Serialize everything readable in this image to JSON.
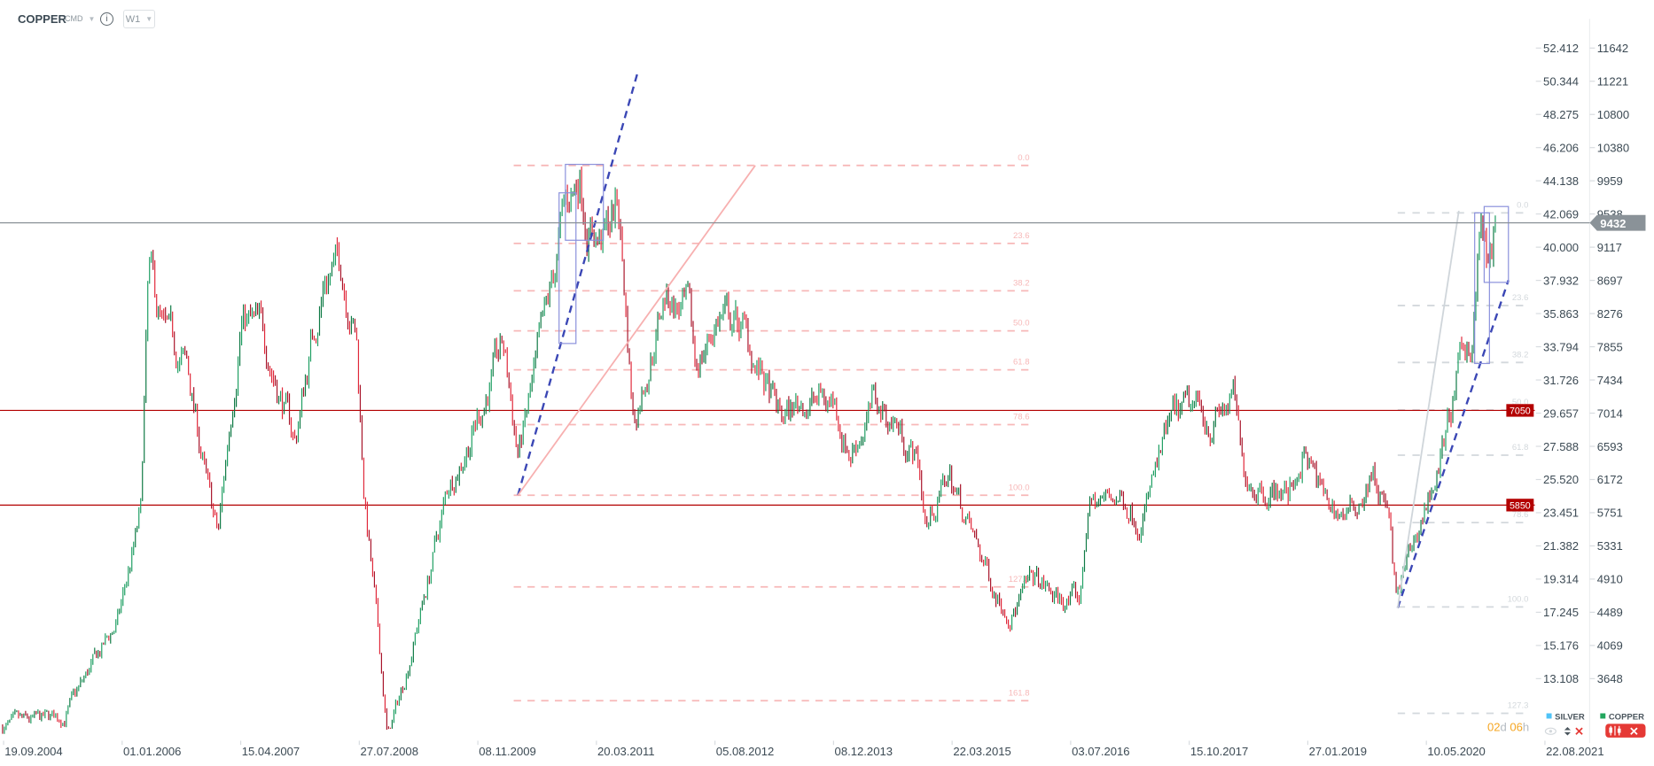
{
  "header": {
    "symbol": "COPPER",
    "market": "CMD",
    "market_caret": "▼",
    "info_icon": "i",
    "timeframe": "W1",
    "timeframe_caret": "▼"
  },
  "price_axis_silver": [
    "52.412",
    "50.344",
    "48.275",
    "46.206",
    "44.138",
    "42.069",
    "40.000",
    "37.932",
    "35.863",
    "33.794",
    "31.726",
    "29.657",
    "27.588",
    "25.520",
    "23.451",
    "21.382",
    "19.314",
    "17.245",
    "15.176",
    "13.108"
  ],
  "price_axis_copper": [
    "11642",
    "11221",
    "10800",
    "10380",
    "9959",
    "9538",
    "9117",
    "8697",
    "8276",
    "7855",
    "7434",
    "7014",
    "6593",
    "6172",
    "5751",
    "5331",
    "4910",
    "4489",
    "4069",
    "3648"
  ],
  "date_axis": [
    "19.09.2004",
    "01.01.2006",
    "15.04.2007",
    "27.07.2008",
    "08.11.2009",
    "20.03.2011",
    "05.08.2012",
    "08.12.2013",
    "22.03.2015",
    "03.07.2016",
    "15.10.2017",
    "27.01.2019",
    "10.05.2020",
    "22.08.2021"
  ],
  "current_price": {
    "label": "9432",
    "value": 9432,
    "color": "#8a9298"
  },
  "horizontal_levels": [
    {
      "label": "7050",
      "value": 7050,
      "color": "#b30000"
    },
    {
      "label": "5850",
      "value": 5850,
      "color": "#b30000"
    }
  ],
  "fib_left": {
    "color": "#f7b8b8",
    "levels": [
      "0.0",
      "23.6",
      "38.2",
      "50.0",
      "61.8",
      "78.6",
      "100.0",
      "127.3",
      "161.8"
    ]
  },
  "fib_right": {
    "color": "#d3d8dc",
    "levels": [
      "0.0",
      "23.6",
      "38.2",
      "50.0",
      "61.8",
      "78.6",
      "100.0",
      "127.3"
    ]
  },
  "legend": {
    "silver": {
      "label": "SILVER",
      "color": "#4fc3f7"
    },
    "copper": {
      "label": "COPPER",
      "color": "#22a65e"
    }
  },
  "countdown": {
    "days": "02",
    "d": "d",
    "hours": "06",
    "h": "h"
  },
  "colors": {
    "up": "#1f9f63",
    "down": "#e0283a",
    "trendline": "#3b47b5",
    "box": "#8a90dc"
  },
  "price_path": [
    [
      "2004-09",
      3038
    ],
    [
      "2005-05",
      3171
    ],
    [
      "2005-12",
      4373
    ],
    [
      "2006-03",
      5708
    ],
    [
      "2006-04",
      8779
    ],
    [
      "2006-06",
      7978
    ],
    [
      "2006-09",
      7577
    ],
    [
      "2006-12",
      5842
    ],
    [
      "2007-01",
      5441
    ],
    [
      "2007-04",
      8245
    ],
    [
      "2007-07",
      7978
    ],
    [
      "2007-11",
      6643
    ],
    [
      "2008-01",
      7845
    ],
    [
      "2008-03",
      8779
    ],
    [
      "2008-05",
      8913
    ],
    [
      "2008-07",
      7978
    ],
    [
      "2008-08",
      5975
    ],
    [
      "2008-10",
      3972
    ],
    [
      "2008-11",
      2904
    ],
    [
      "2009-01",
      3572
    ],
    [
      "2009-04",
      4773
    ],
    [
      "2009-07",
      6109
    ],
    [
      "2009-10",
      6776
    ],
    [
      "2010-02",
      7845
    ],
    [
      "2010-04",
      6509
    ],
    [
      "2010-05",
      6910
    ],
    [
      "2010-08",
      8379
    ],
    [
      "2010-10",
      9580
    ],
    [
      "2010-12",
      10048
    ],
    [
      "2011-01",
      9447
    ],
    [
      "2011-03",
      9180
    ],
    [
      "2011-05",
      9714
    ],
    [
      "2011-07",
      6910
    ],
    [
      "2011-11",
      8512
    ],
    [
      "2012-02",
      8245
    ],
    [
      "2012-03",
      7577
    ],
    [
      "2012-06",
      8245
    ],
    [
      "2012-09",
      8112
    ],
    [
      "2012-11",
      7577
    ],
    [
      "2013-02",
      6910
    ],
    [
      "2013-05",
      7177
    ],
    [
      "2013-09",
      7177
    ],
    [
      "2013-11",
      6509
    ],
    [
      "2014-02",
      7110
    ],
    [
      "2014-05",
      6910
    ],
    [
      "2014-08",
      6376
    ],
    [
      "2014-09",
      5575
    ],
    [
      "2014-12",
      6242
    ],
    [
      "2015-03",
      5441
    ],
    [
      "2015-06",
      4773
    ],
    [
      "2015-08",
      4506
    ],
    [
      "2015-11",
      4907
    ],
    [
      "2016-02",
      4640
    ],
    [
      "2016-05",
      4640
    ],
    [
      "2016-06",
      5842
    ],
    [
      "2016-10",
      5975
    ],
    [
      "2017-01",
      5708
    ],
    [
      "2017-05",
      6910
    ],
    [
      "2017-08",
      7043
    ],
    [
      "2017-10",
      6910
    ],
    [
      "2018-01",
      7177
    ],
    [
      "2018-02",
      6242
    ],
    [
      "2018-05",
      6109
    ],
    [
      "2018-08",
      5975
    ],
    [
      "2018-10",
      6509
    ],
    [
      "2019-01",
      5842
    ],
    [
      "2019-04",
      5708
    ],
    [
      "2019-07",
      6242
    ],
    [
      "2019-09",
      5708
    ],
    [
      "2019-10",
      4640
    ],
    [
      "2020-01",
      5575
    ],
    [
      "2020-04",
      6509
    ],
    [
      "2020-06",
      7444
    ],
    [
      "2020-08",
      8112
    ],
    [
      "2020-09",
      9447
    ],
    [
      "2020-10",
      8779
    ],
    [
      "2020-11",
      9380
    ]
  ]
}
